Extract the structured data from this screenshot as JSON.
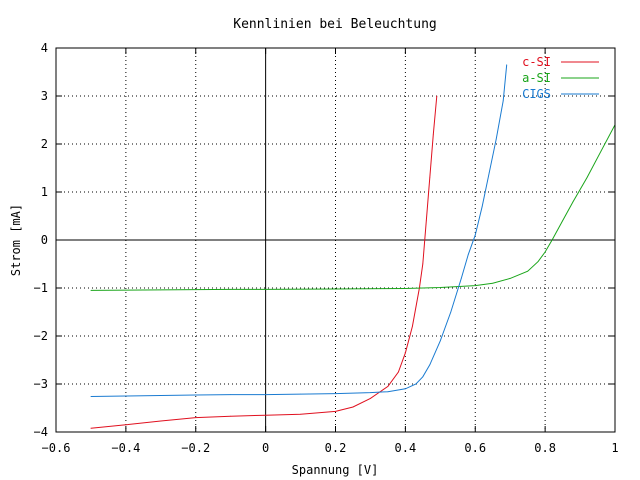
{
  "chart_data": {
    "type": "line",
    "title": "Kennlinien bei Beleuchtung",
    "xlabel": "Spannung [V]",
    "ylabel": "Strom [mA]",
    "xlim": [
      -0.6,
      1.0
    ],
    "ylim": [
      -4,
      4
    ],
    "xticks": [
      "−0.6",
      "−0.4",
      "−0.2",
      "0",
      "0.2",
      "0.4",
      "0.6",
      "0.8",
      "1"
    ],
    "yticks": [
      "−4",
      "−3",
      "−2",
      "−1",
      "0",
      "1",
      "2",
      "3",
      "4"
    ],
    "grid": true,
    "legend_position": "top-right",
    "series": [
      {
        "name": "c-SI",
        "color": "#e0101f",
        "points": [
          [
            -0.5,
            -3.92
          ],
          [
            -0.4,
            -3.85
          ],
          [
            -0.3,
            -3.77
          ],
          [
            -0.2,
            -3.7
          ],
          [
            -0.1,
            -3.67
          ],
          [
            0.0,
            -3.65
          ],
          [
            0.1,
            -3.63
          ],
          [
            0.2,
            -3.57
          ],
          [
            0.25,
            -3.48
          ],
          [
            0.3,
            -3.3
          ],
          [
            0.35,
            -3.05
          ],
          [
            0.38,
            -2.75
          ],
          [
            0.4,
            -2.35
          ],
          [
            0.42,
            -1.8
          ],
          [
            0.44,
            -1.0
          ],
          [
            0.45,
            -0.5
          ],
          [
            0.46,
            0.4
          ],
          [
            0.47,
            1.3
          ],
          [
            0.48,
            2.2
          ],
          [
            0.49,
            3.0
          ]
        ]
      },
      {
        "name": "a-SI",
        "color": "#1aa51a",
        "points": [
          [
            -0.5,
            -1.05
          ],
          [
            -0.3,
            -1.04
          ],
          [
            -0.1,
            -1.03
          ],
          [
            0.0,
            -1.03
          ],
          [
            0.2,
            -1.02
          ],
          [
            0.4,
            -1.01
          ],
          [
            0.5,
            -0.99
          ],
          [
            0.6,
            -0.95
          ],
          [
            0.65,
            -0.9
          ],
          [
            0.7,
            -0.8
          ],
          [
            0.75,
            -0.65
          ],
          [
            0.78,
            -0.45
          ],
          [
            0.8,
            -0.25
          ],
          [
            0.82,
            0.0
          ],
          [
            0.85,
            0.4
          ],
          [
            0.88,
            0.8
          ],
          [
            0.92,
            1.3
          ],
          [
            0.96,
            1.85
          ],
          [
            1.0,
            2.4
          ]
        ]
      },
      {
        "name": "CIGS",
        "color": "#1a7bd1",
        "points": [
          [
            -0.5,
            -3.26
          ],
          [
            -0.4,
            -3.25
          ],
          [
            -0.3,
            -3.24
          ],
          [
            -0.2,
            -3.23
          ],
          [
            -0.1,
            -3.22
          ],
          [
            0.0,
            -3.22
          ],
          [
            0.1,
            -3.21
          ],
          [
            0.2,
            -3.2
          ],
          [
            0.3,
            -3.18
          ],
          [
            0.35,
            -3.16
          ],
          [
            0.4,
            -3.1
          ],
          [
            0.43,
            -3.0
          ],
          [
            0.45,
            -2.85
          ],
          [
            0.47,
            -2.6
          ],
          [
            0.5,
            -2.1
          ],
          [
            0.53,
            -1.5
          ],
          [
            0.56,
            -0.8
          ],
          [
            0.58,
            -0.3
          ],
          [
            0.6,
            0.1
          ],
          [
            0.62,
            0.7
          ],
          [
            0.64,
            1.4
          ],
          [
            0.66,
            2.1
          ],
          [
            0.68,
            2.9
          ],
          [
            0.69,
            3.65
          ]
        ]
      }
    ]
  }
}
